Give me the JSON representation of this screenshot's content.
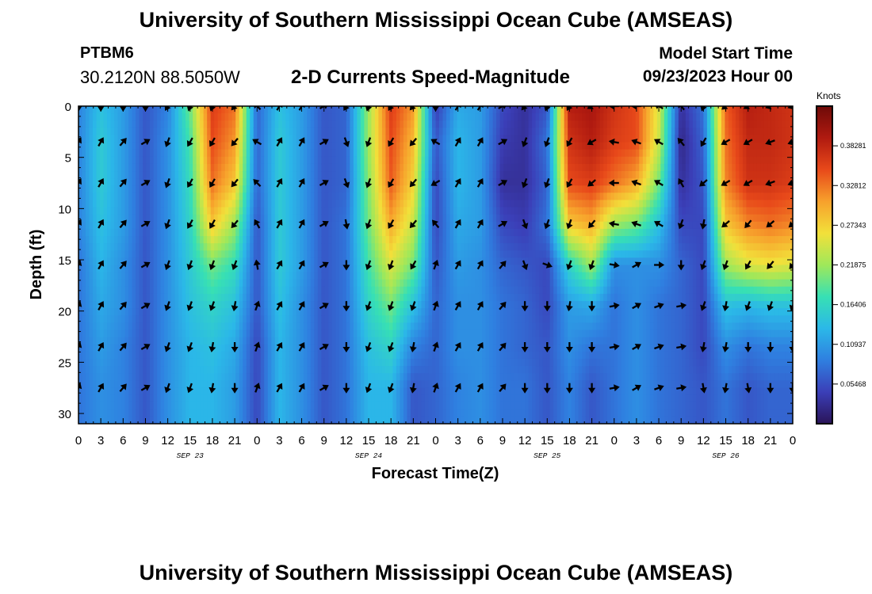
{
  "header": {
    "title": "University of Southern Mississippi Ocean Cube (AMSEAS)",
    "station": "PTBM6",
    "coords": "30.2120N  88.5050W",
    "subtitle": "2-D Currents Speed-Magnitude",
    "start_label": "Model Start Time",
    "start_value": "09/23/2023 Hour 00"
  },
  "footer": {
    "title": "University of Southern Mississippi Ocean Cube (AMSEAS)"
  },
  "colors": {
    "palette": [
      "#2a1458",
      "#3b3fb8",
      "#2f7fe0",
      "#2bb8e8",
      "#37e0b4",
      "#9fe85a",
      "#f2e03a",
      "#f7a12c",
      "#e8491a",
      "#b01a10",
      "#6e0a08"
    ]
  },
  "chart_data": {
    "type": "heatmap",
    "title": "2-D Currents Speed-Magnitude",
    "xlabel": "Forecast Time(Z)",
    "ylabel": "Depth (ft)",
    "x_ticks": [
      "0",
      "3",
      "6",
      "9",
      "12",
      "15",
      "18",
      "21",
      "0",
      "3",
      "6",
      "9",
      "12",
      "15",
      "18",
      "21",
      "0",
      "3",
      "6",
      "9",
      "12",
      "15",
      "18",
      "21",
      "0",
      "3",
      "6",
      "9",
      "12",
      "15",
      "18",
      "21",
      "0"
    ],
    "date_labels": [
      {
        "label": "SEP 23",
        "hour": 15
      },
      {
        "label": "SEP 24",
        "hour": 39
      },
      {
        "label": "SEP 25",
        "hour": 63
      },
      {
        "label": "SEP 26",
        "hour": 87
      }
    ],
    "xlim": [
      0,
      96
    ],
    "y_ticks": [
      0,
      5,
      10,
      15,
      20,
      25,
      30
    ],
    "ylim": [
      0,
      31
    ],
    "colorbar": {
      "title": "Knots",
      "ticks": [
        "0.38281",
        "0.32812",
        "0.27343",
        "0.21875",
        "0.16406",
        "0.10937",
        "0.05468"
      ],
      "range": [
        0,
        0.4375
      ]
    },
    "arrow_depths": [
      0,
      3.5,
      7.5,
      11.5,
      15.5,
      19.5,
      23.5,
      27.5
    ],
    "speed_columns": [
      {
        "hour": 0,
        "speed": [
          0.09,
          0.09,
          0.09,
          0.09,
          0.08,
          0.08,
          0.08,
          0.08
        ],
        "dir": [
          180,
          30,
          30,
          30,
          20,
          20,
          20,
          20
        ]
      },
      {
        "hour": 3,
        "speed": [
          0.14,
          0.15,
          0.15,
          0.14,
          0.13,
          0.12,
          0.11,
          0.1
        ],
        "dir": [
          180,
          30,
          30,
          30,
          30,
          30,
          30,
          30
        ]
      },
      {
        "hour": 6,
        "speed": [
          0.11,
          0.11,
          0.11,
          0.11,
          0.1,
          0.1,
          0.09,
          0.09
        ],
        "dir": [
          180,
          40,
          40,
          40,
          40,
          40,
          40,
          40
        ]
      },
      {
        "hour": 9,
        "speed": [
          0.06,
          0.06,
          0.06,
          0.06,
          0.06,
          0.06,
          0.06,
          0.06
        ],
        "dir": [
          180,
          60,
          60,
          60,
          60,
          60,
          60,
          60
        ]
      },
      {
        "hour": 12,
        "speed": [
          0.09,
          0.1,
          0.1,
          0.1,
          0.1,
          0.1,
          0.1,
          0.1
        ],
        "dir": [
          210,
          200,
          200,
          200,
          200,
          200,
          200,
          200
        ]
      },
      {
        "hour": 15,
        "speed": [
          0.2,
          0.18,
          0.17,
          0.16,
          0.15,
          0.14,
          0.13,
          0.13
        ],
        "dir": [
          200,
          210,
          210,
          210,
          200,
          200,
          200,
          200
        ]
      },
      {
        "hour": 18,
        "speed": [
          0.36,
          0.35,
          0.33,
          0.28,
          0.2,
          0.16,
          0.14,
          0.13
        ],
        "dir": [
          200,
          210,
          210,
          210,
          200,
          200,
          190,
          190
        ]
      },
      {
        "hour": 21,
        "speed": [
          0.33,
          0.31,
          0.28,
          0.22,
          0.17,
          0.14,
          0.12,
          0.11
        ],
        "dir": [
          220,
          220,
          220,
          220,
          200,
          190,
          180,
          180
        ]
      },
      {
        "hour": 24,
        "speed": [
          0.07,
          0.07,
          0.07,
          0.06,
          0.06,
          0.06,
          0.05,
          0.05
        ],
        "dir": [
          315,
          300,
          315,
          330,
          350,
          20,
          20,
          20
        ]
      },
      {
        "hour": 27,
        "speed": [
          0.14,
          0.15,
          0.15,
          0.15,
          0.15,
          0.14,
          0.13,
          0.13
        ],
        "dir": [
          30,
          30,
          30,
          30,
          30,
          30,
          30,
          30
        ]
      },
      {
        "hour": 30,
        "speed": [
          0.11,
          0.11,
          0.11,
          0.11,
          0.11,
          0.1,
          0.1,
          0.1
        ],
        "dir": [
          30,
          30,
          30,
          30,
          30,
          30,
          30,
          30
        ]
      },
      {
        "hour": 33,
        "speed": [
          0.06,
          0.06,
          0.06,
          0.06,
          0.06,
          0.06,
          0.06,
          0.06
        ],
        "dir": [
          60,
          60,
          60,
          60,
          60,
          60,
          60,
          60
        ]
      },
      {
        "hour": 36,
        "speed": [
          0.07,
          0.07,
          0.07,
          0.08,
          0.08,
          0.08,
          0.08,
          0.08
        ],
        "dir": [
          210,
          160,
          160,
          170,
          180,
          180,
          180,
          180
        ]
      },
      {
        "hour": 39,
        "speed": [
          0.22,
          0.22,
          0.21,
          0.2,
          0.18,
          0.16,
          0.14,
          0.13
        ],
        "dir": [
          200,
          200,
          200,
          200,
          200,
          200,
          200,
          200
        ]
      },
      {
        "hour": 42,
        "speed": [
          0.36,
          0.35,
          0.34,
          0.3,
          0.25,
          0.2,
          0.16,
          0.13
        ],
        "dir": [
          210,
          210,
          210,
          210,
          200,
          200,
          200,
          200
        ]
      },
      {
        "hour": 45,
        "speed": [
          0.31,
          0.29,
          0.27,
          0.24,
          0.2,
          0.14,
          0.09,
          0.06
        ],
        "dir": [
          220,
          220,
          220,
          220,
          210,
          200,
          190,
          190
        ]
      },
      {
        "hour": 48,
        "speed": [
          0.04,
          0.06,
          0.05,
          0.05,
          0.06,
          0.07,
          0.07,
          0.07
        ],
        "dir": [
          180,
          300,
          240,
          320,
          20,
          20,
          20,
          20
        ]
      },
      {
        "hour": 51,
        "speed": [
          0.12,
          0.13,
          0.13,
          0.12,
          0.11,
          0.1,
          0.1,
          0.09
        ],
        "dir": [
          30,
          30,
          30,
          30,
          30,
          30,
          30,
          30
        ]
      },
      {
        "hour": 54,
        "speed": [
          0.11,
          0.11,
          0.11,
          0.11,
          0.1,
          0.1,
          0.1,
          0.1
        ],
        "dir": [
          30,
          30,
          30,
          30,
          30,
          30,
          30,
          30
        ]
      },
      {
        "hour": 57,
        "speed": [
          0.05,
          0.04,
          0.03,
          0.05,
          0.07,
          0.08,
          0.08,
          0.08
        ],
        "dir": [
          60,
          60,
          60,
          60,
          40,
          40,
          40,
          40
        ]
      },
      {
        "hour": 60,
        "speed": [
          0.03,
          0.03,
          0.03,
          0.04,
          0.06,
          0.07,
          0.07,
          0.08
        ],
        "dir": [
          220,
          200,
          200,
          160,
          160,
          180,
          180,
          180
        ]
      },
      {
        "hour": 63,
        "speed": [
          0.06,
          0.08,
          0.07,
          0.08,
          0.05,
          0.05,
          0.06,
          0.06
        ],
        "dir": [
          200,
          200,
          200,
          200,
          110,
          180,
          180,
          180
        ]
      },
      {
        "hour": 66,
        "speed": [
          0.39,
          0.37,
          0.35,
          0.28,
          0.16,
          0.11,
          0.1,
          0.09
        ],
        "dir": [
          210,
          210,
          210,
          200,
          200,
          190,
          180,
          180
        ]
      },
      {
        "hour": 69,
        "speed": [
          0.4,
          0.39,
          0.36,
          0.3,
          0.22,
          0.12,
          0.08,
          0.06
        ],
        "dir": [
          240,
          240,
          230,
          220,
          200,
          180,
          180,
          180
        ]
      },
      {
        "hour": 72,
        "speed": [
          0.37,
          0.36,
          0.33,
          0.22,
          0.1,
          0.08,
          0.08,
          0.08
        ],
        "dir": [
          270,
          280,
          270,
          280,
          100,
          80,
          80,
          80
        ]
      },
      {
        "hour": 75,
        "speed": [
          0.35,
          0.35,
          0.3,
          0.2,
          0.1,
          0.1,
          0.1,
          0.1
        ],
        "dir": [
          270,
          290,
          290,
          290,
          60,
          60,
          60,
          60
        ]
      },
      {
        "hour": 78,
        "speed": [
          0.25,
          0.24,
          0.2,
          0.14,
          0.1,
          0.08,
          0.08,
          0.08
        ],
        "dir": [
          300,
          300,
          300,
          300,
          90,
          70,
          70,
          70
        ]
      },
      {
        "hour": 81,
        "speed": [
          0.03,
          0.02,
          0.03,
          0.05,
          0.07,
          0.07,
          0.07,
          0.07
        ],
        "dir": [
          320,
          320,
          330,
          200,
          180,
          80,
          80,
          80
        ]
      },
      {
        "hour": 84,
        "speed": [
          0.08,
          0.07,
          0.06,
          0.05,
          0.05,
          0.05,
          0.05,
          0.06
        ],
        "dir": [
          200,
          210,
          230,
          190,
          200,
          200,
          190,
          170
        ]
      },
      {
        "hour": 87,
        "speed": [
          0.34,
          0.33,
          0.32,
          0.28,
          0.22,
          0.14,
          0.1,
          0.08
        ],
        "dir": [
          230,
          240,
          240,
          230,
          200,
          190,
          190,
          190
        ]
      },
      {
        "hour": 90,
        "speed": [
          0.39,
          0.38,
          0.37,
          0.32,
          0.25,
          0.13,
          0.08,
          0.06
        ],
        "dir": [
          240,
          240,
          240,
          220,
          210,
          200,
          180,
          170
        ]
      },
      {
        "hour": 93,
        "speed": [
          0.38,
          0.38,
          0.37,
          0.33,
          0.26,
          0.14,
          0.09,
          0.07
        ],
        "dir": [
          250,
          250,
          250,
          230,
          220,
          200,
          180,
          180
        ]
      },
      {
        "hour": 96,
        "speed": [
          0.37,
          0.37,
          0.36,
          0.32,
          0.25,
          0.14,
          0.09,
          0.07
        ],
        "dir": [
          250,
          250,
          250,
          230,
          220,
          200,
          180,
          180
        ]
      }
    ]
  }
}
